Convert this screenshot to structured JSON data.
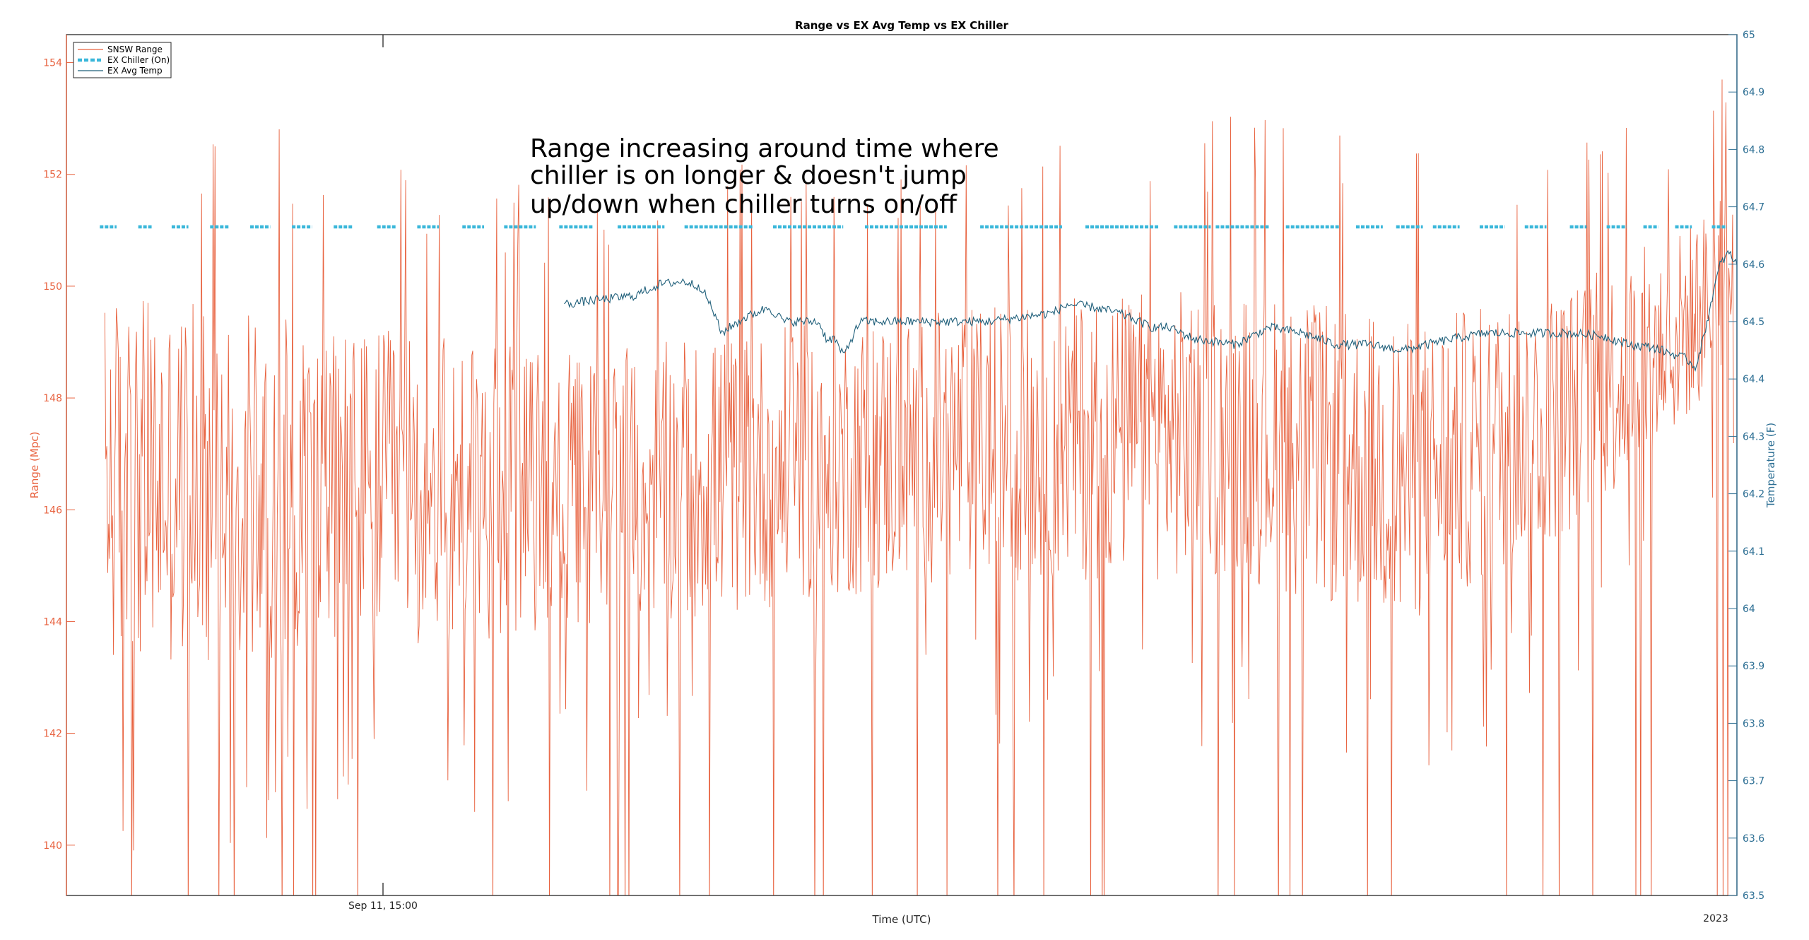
{
  "chart_data": {
    "type": "line",
    "title": "Range vs EX Avg Temp vs EX Chiller",
    "xlabel": "Time (UTC)",
    "ylabel_left": "Range (Mpc)",
    "ylabel_right": "Temperature (F)",
    "ylim_left": [
      139.1,
      154.5
    ],
    "ylim_right": [
      63.5,
      65.0
    ],
    "yticks_left": [
      "140",
      "142",
      "144",
      "146",
      "148",
      "150",
      "152",
      "154"
    ],
    "yticks_right": [
      "63.5",
      "63.6",
      "63.7",
      "63.8",
      "63.9",
      "64",
      "64.1",
      "64.2",
      "64.3",
      "64.4",
      "64.5",
      "64.6",
      "64.7",
      "64.8",
      "64.9",
      "65"
    ],
    "xticks": [
      "Sep 11, 15:00"
    ],
    "x_corner_label": "2023",
    "legend_position": "top-left",
    "grid": false,
    "annotation": [
      "Range increasing around time where",
      "chiller is on longer & doesn't jump",
      "up/down when chiller turns on/off"
    ],
    "colors": {
      "range": "#e8623f",
      "chiller": "#3ab7da",
      "temp": "#1f5f7a",
      "axis_left": "#e8623f",
      "axis_right": "#2d6f94",
      "border": "#00ff00"
    },
    "series": [
      {
        "name": "SNSW Range",
        "axis": "left",
        "x_range": [
          0.023,
          0.998
        ],
        "baseline": [
          [
            0.0,
            146.5
          ],
          [
            0.3,
            146.3
          ],
          [
            0.55,
            147.2
          ],
          [
            0.7,
            147.4
          ],
          [
            0.8,
            146.6
          ],
          [
            0.9,
            147.8
          ],
          [
            0.96,
            149.0
          ],
          [
            1.0,
            150.3
          ]
        ],
        "spread": [
          [
            0.0,
            7
          ],
          [
            0.3,
            5
          ],
          [
            0.55,
            5
          ],
          [
            0.8,
            5.5
          ],
          [
            0.95,
            4
          ],
          [
            1.0,
            3
          ]
        ]
      },
      {
        "name": "EX Chiller (On)",
        "axis": "right",
        "value": 64.665,
        "on_segments": [
          [
            0.02,
            0.03
          ],
          [
            0.043,
            0.051
          ],
          [
            0.063,
            0.073
          ],
          [
            0.086,
            0.097
          ],
          [
            0.11,
            0.122
          ],
          [
            0.135,
            0.147
          ],
          [
            0.16,
            0.171
          ],
          [
            0.186,
            0.197
          ],
          [
            0.21,
            0.223
          ],
          [
            0.237,
            0.25
          ],
          [
            0.262,
            0.281
          ],
          [
            0.295,
            0.315
          ],
          [
            0.33,
            0.358
          ],
          [
            0.37,
            0.411
          ],
          [
            0.423,
            0.465
          ],
          [
            0.478,
            0.527
          ],
          [
            0.547,
            0.596
          ],
          [
            0.61,
            0.654
          ],
          [
            0.663,
            0.685
          ],
          [
            0.688,
            0.72
          ],
          [
            0.73,
            0.762
          ],
          [
            0.772,
            0.788
          ],
          [
            0.796,
            0.812
          ],
          [
            0.818,
            0.834
          ],
          [
            0.846,
            0.861
          ],
          [
            0.873,
            0.886
          ],
          [
            0.9,
            0.91
          ],
          [
            0.922,
            0.934
          ],
          [
            0.944,
            0.953
          ],
          [
            0.963,
            0.973
          ],
          [
            0.985,
            0.994
          ]
        ]
      },
      {
        "name": "EX Avg Temp",
        "axis": "right",
        "points": [
          [
            0.298,
            64.53
          ],
          [
            0.31,
            64.535
          ],
          [
            0.34,
            64.545
          ],
          [
            0.355,
            64.565
          ],
          [
            0.37,
            64.57
          ],
          [
            0.38,
            64.56
          ],
          [
            0.387,
            64.52
          ],
          [
            0.392,
            64.48
          ],
          [
            0.405,
            64.505
          ],
          [
            0.42,
            64.525
          ],
          [
            0.43,
            64.5
          ],
          [
            0.45,
            64.5
          ],
          [
            0.455,
            64.47
          ],
          [
            0.46,
            64.47
          ],
          [
            0.465,
            64.44
          ],
          [
            0.475,
            64.5
          ],
          [
            0.5,
            64.5
          ],
          [
            0.52,
            64.5
          ],
          [
            0.55,
            64.5
          ],
          [
            0.565,
            64.505
          ],
          [
            0.59,
            64.515
          ],
          [
            0.6,
            64.53
          ],
          [
            0.615,
            64.525
          ],
          [
            0.63,
            64.515
          ],
          [
            0.65,
            64.49
          ],
          [
            0.66,
            64.49
          ],
          [
            0.675,
            64.47
          ],
          [
            0.7,
            64.46
          ],
          [
            0.72,
            64.49
          ],
          [
            0.74,
            64.48
          ],
          [
            0.76,
            64.46
          ],
          [
            0.78,
            64.46
          ],
          [
            0.8,
            64.45
          ],
          [
            0.83,
            64.47
          ],
          [
            0.85,
            64.48
          ],
          [
            0.88,
            64.48
          ],
          [
            0.9,
            64.48
          ],
          [
            0.92,
            64.475
          ],
          [
            0.935,
            64.46
          ],
          [
            0.95,
            64.455
          ],
          [
            0.96,
            64.445
          ],
          [
            0.97,
            64.435
          ],
          [
            0.975,
            64.42
          ],
          [
            0.98,
            64.47
          ],
          [
            0.985,
            64.54
          ],
          [
            0.99,
            64.6
          ],
          [
            0.995,
            64.62
          ],
          [
            1.0,
            64.6
          ]
        ]
      }
    ]
  }
}
